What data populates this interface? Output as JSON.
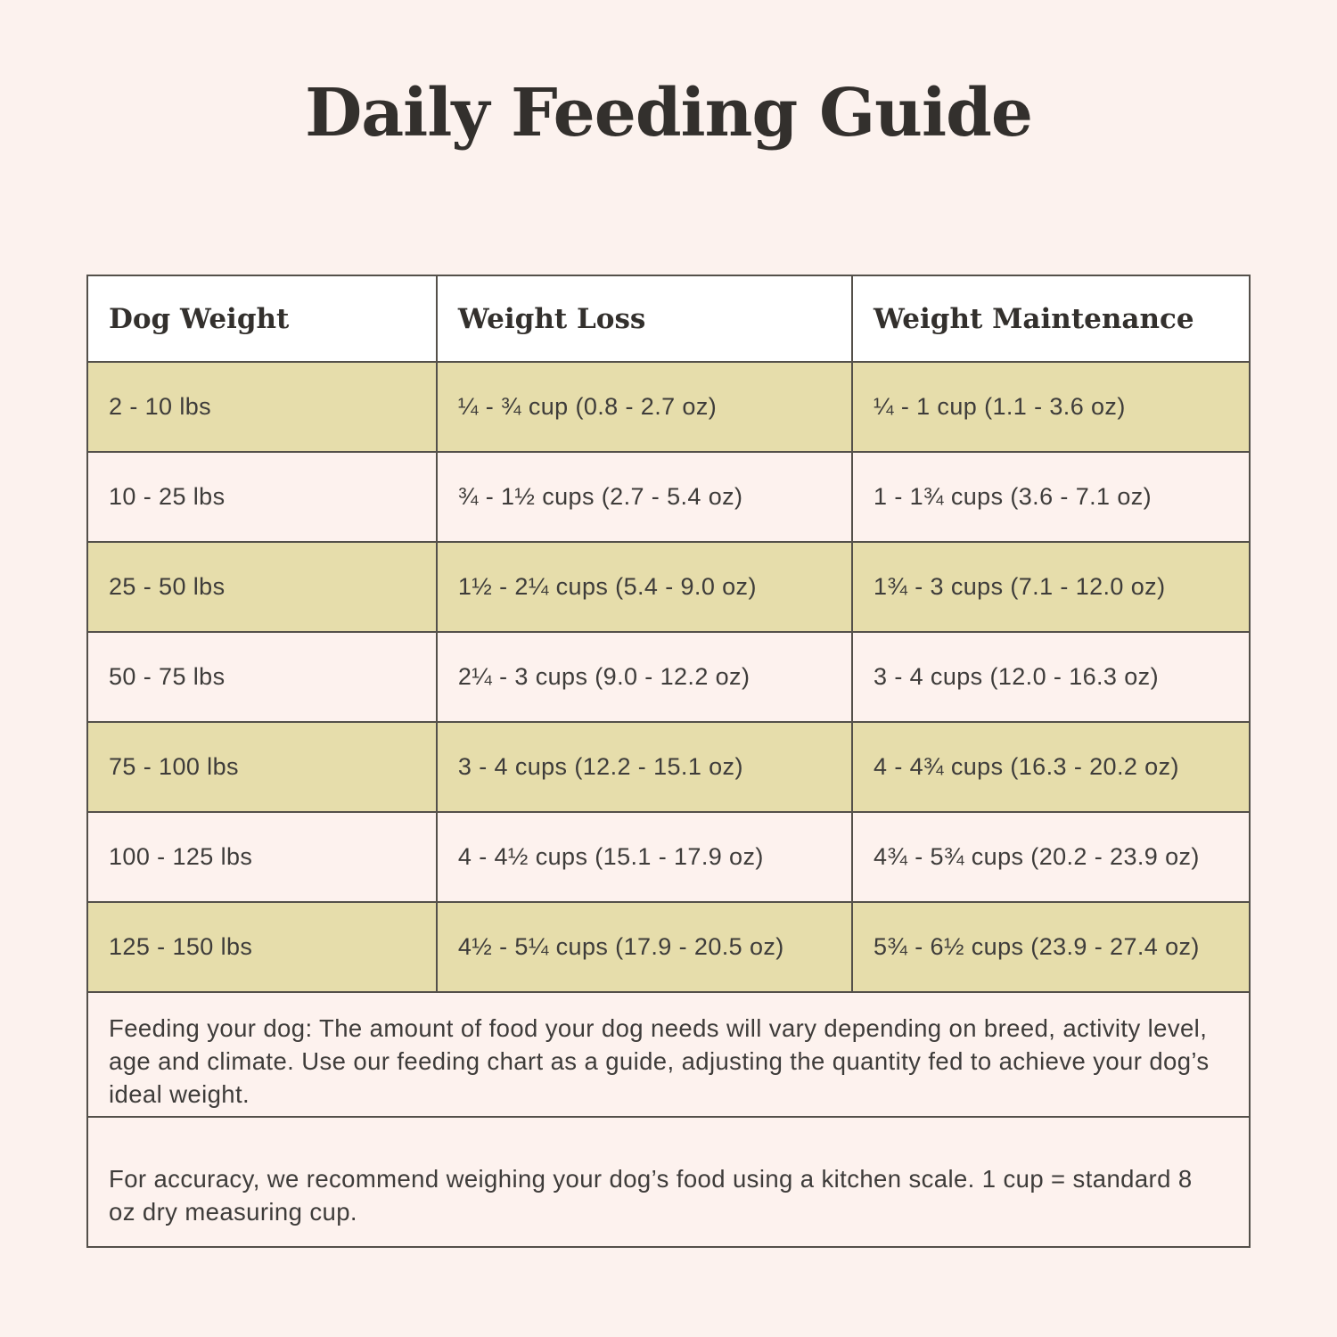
{
  "page": {
    "title": "Daily Feeding Guide"
  },
  "colors": {
    "page_background": "#fcf2ee",
    "header_background": "#ffffff",
    "row_khaki": "#e6ddab",
    "row_pink": "#fdf2ee",
    "border": "#54504a",
    "title_text": "#33302d",
    "body_text": "#3e3c3a"
  },
  "table": {
    "columns": [
      "Dog Weight",
      "Weight Loss",
      "Weight Maintenance"
    ],
    "rows": [
      {
        "dog_weight": "2 - 10 lbs",
        "weight_loss": "¼ - ¾ cup (0.8 - 2.7 oz)",
        "weight_maintenance": "¼ - 1 cup (1.1 - 3.6 oz)"
      },
      {
        "dog_weight": "10 - 25 lbs",
        "weight_loss": "¾ - 1½ cups (2.7 - 5.4 oz)",
        "weight_maintenance": "1 - 1¾ cups (3.6 - 7.1 oz)"
      },
      {
        "dog_weight": "25 - 50 lbs",
        "weight_loss": "1½ - 2¼ cups (5.4 - 9.0 oz)",
        "weight_maintenance": "1¾ - 3 cups (7.1 - 12.0 oz)"
      },
      {
        "dog_weight": "50 - 75 lbs",
        "weight_loss": "2¼ - 3 cups (9.0 - 12.2 oz)",
        "weight_maintenance": "3 - 4 cups (12.0 - 16.3 oz)"
      },
      {
        "dog_weight": "75 - 100 lbs",
        "weight_loss": "3 - 4 cups (12.2 - 15.1 oz)",
        "weight_maintenance": "4 - 4¾ cups (16.3 - 20.2 oz)"
      },
      {
        "dog_weight": "100 - 125 lbs",
        "weight_loss": "4 - 4½ cups (15.1 - 17.9 oz)",
        "weight_maintenance": "4¾ - 5¾ cups (20.2 - 23.9 oz)"
      },
      {
        "dog_weight": "125 - 150 lbs",
        "weight_loss": "4½ - 5¼ cups (17.9 - 20.5 oz)",
        "weight_maintenance": "5¾ - 6½ cups (23.9 - 27.4 oz)"
      }
    ]
  },
  "notes": {
    "feeding": "Feeding your dog: The amount of food your dog needs will vary depending on breed, activity level, age and climate. Use our feeding chart as a guide, adjusting the quantity fed to achieve your dog’s ideal weight.",
    "accuracy": "For accuracy, we recommend weighing your dog’s food using a kitchen scale. 1 cup = standard 8 oz dry measuring cup."
  }
}
